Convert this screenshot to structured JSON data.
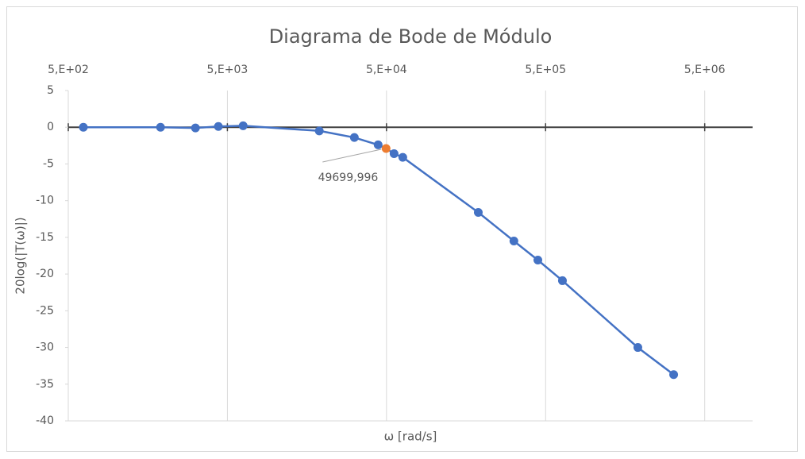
{
  "chart_data": {
    "type": "scatter",
    "title": "Diagrama de Bode de Módulo",
    "x_label": "ω [rad/s]",
    "y_label": "20log(|T(ω)|)",
    "xscale": "log",
    "xlim": [
      500,
      10000000
    ],
    "xticks": [
      {
        "value": 500,
        "label": "5,E+02"
      },
      {
        "value": 5000,
        "label": "5,E+03"
      },
      {
        "value": 50000,
        "label": "5,E+04"
      },
      {
        "value": 500000,
        "label": "5,E+05"
      },
      {
        "value": 5000000,
        "label": "5,E+06"
      }
    ],
    "ylim": [
      -40,
      5
    ],
    "yticks": [
      5,
      0,
      -5,
      -10,
      -15,
      -20,
      -25,
      -30,
      -35,
      -40
    ],
    "xgrid": true,
    "series": [
      {
        "color": "#4472c4",
        "x": [
          622,
          1900,
          3150,
          4390,
          6280,
          18900,
          31400,
          44300,
          49699.996,
          55800,
          63300,
          188800,
          316000,
          447000,
          638000,
          1900000,
          3190000
        ],
        "values": [
          0,
          0,
          -0.1,
          0.1,
          0.2,
          -0.5,
          -1.4,
          -2.4,
          -2.9,
          -3.6,
          -4.1,
          -11.6,
          -15.5,
          -18.1,
          -20.9,
          -30.0,
          -33.7
        ],
        "point_labels": [
          {
            "index": 8,
            "label": "49699,996",
            "color": "#ed7d31"
          }
        ]
      }
    ]
  }
}
